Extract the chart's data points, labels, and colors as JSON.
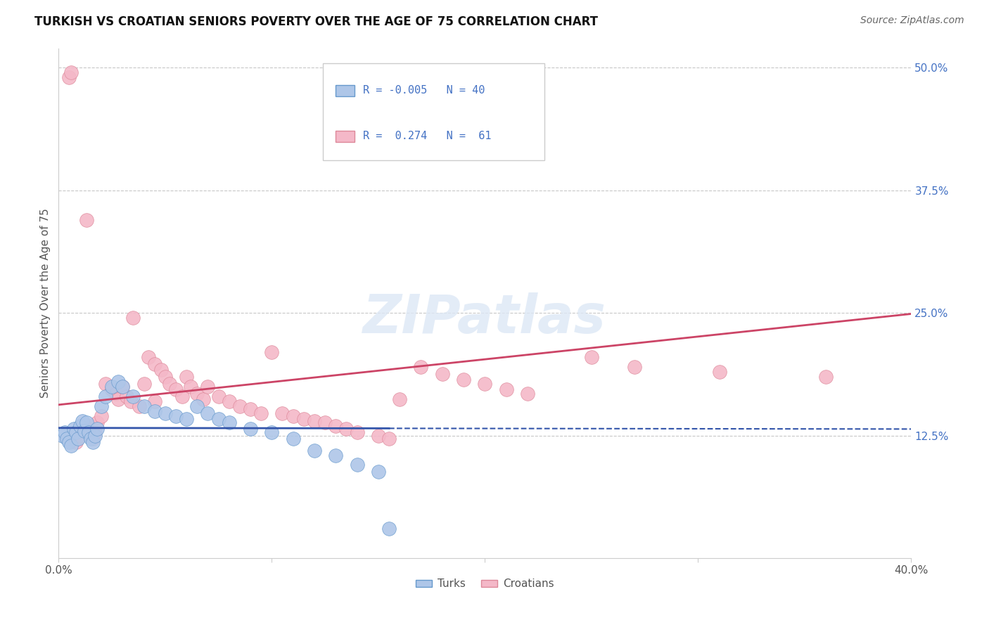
{
  "title": "TURKISH VS CROATIAN SENIORS POVERTY OVER THE AGE OF 75 CORRELATION CHART",
  "source": "Source: ZipAtlas.com",
  "ylabel": "Seniors Poverty Over the Age of 75",
  "xlim": [
    0.0,
    0.4
  ],
  "ylim": [
    0.0,
    0.52
  ],
  "ytick_positions": [
    0.125,
    0.25,
    0.375,
    0.5
  ],
  "ytick_labels": [
    "12.5%",
    "25.0%",
    "37.5%",
    "50.0%"
  ],
  "background_color": "#ffffff",
  "grid_color": "#c8c8c8",
  "turks_color": "#aec6e8",
  "turks_edge_color": "#6699cc",
  "croatians_color": "#f4b8c8",
  "croatians_edge_color": "#dd8899",
  "turks_line_color": "#3355aa",
  "croatians_line_color": "#cc4466",
  "R_turks": -0.005,
  "N_turks": 40,
  "R_croatians": 0.274,
  "N_croatians": 61,
  "turks_x": [
    0.002,
    0.003,
    0.004,
    0.005,
    0.006,
    0.007,
    0.008,
    0.009,
    0.01,
    0.011,
    0.012,
    0.013,
    0.014,
    0.015,
    0.016,
    0.017,
    0.018,
    0.02,
    0.022,
    0.025,
    0.028,
    0.03,
    0.035,
    0.04,
    0.045,
    0.05,
    0.055,
    0.06,
    0.065,
    0.07,
    0.075,
    0.08,
    0.09,
    0.1,
    0.11,
    0.12,
    0.13,
    0.14,
    0.15,
    0.155
  ],
  "turks_y": [
    0.125,
    0.128,
    0.122,
    0.118,
    0.115,
    0.132,
    0.128,
    0.122,
    0.135,
    0.14,
    0.13,
    0.138,
    0.128,
    0.122,
    0.118,
    0.125,
    0.132,
    0.155,
    0.165,
    0.175,
    0.18,
    0.175,
    0.165,
    0.155,
    0.15,
    0.148,
    0.145,
    0.142,
    0.155,
    0.148,
    0.142,
    0.138,
    0.132,
    0.128,
    0.122,
    0.11,
    0.105,
    0.095,
    0.088,
    0.03
  ],
  "croatians_x": [
    0.005,
    0.006,
    0.008,
    0.01,
    0.012,
    0.013,
    0.015,
    0.016,
    0.017,
    0.018,
    0.02,
    0.022,
    0.025,
    0.027,
    0.028,
    0.03,
    0.032,
    0.034,
    0.035,
    0.038,
    0.04,
    0.042,
    0.045,
    0.048,
    0.05,
    0.052,
    0.055,
    0.058,
    0.06,
    0.062,
    0.065,
    0.068,
    0.07,
    0.075,
    0.08,
    0.085,
    0.09,
    0.095,
    0.1,
    0.105,
    0.11,
    0.115,
    0.12,
    0.125,
    0.13,
    0.135,
    0.14,
    0.15,
    0.155,
    0.16,
    0.17,
    0.18,
    0.19,
    0.2,
    0.21,
    0.22,
    0.25,
    0.27,
    0.31,
    0.36,
    0.045
  ],
  "croatians_y": [
    0.49,
    0.495,
    0.118,
    0.125,
    0.13,
    0.345,
    0.135,
    0.122,
    0.128,
    0.138,
    0.145,
    0.178,
    0.172,
    0.168,
    0.162,
    0.175,
    0.165,
    0.16,
    0.245,
    0.155,
    0.178,
    0.205,
    0.198,
    0.192,
    0.185,
    0.178,
    0.172,
    0.165,
    0.185,
    0.175,
    0.168,
    0.162,
    0.175,
    0.165,
    0.16,
    0.155,
    0.152,
    0.148,
    0.21,
    0.148,
    0.145,
    0.142,
    0.14,
    0.138,
    0.135,
    0.132,
    0.128,
    0.125,
    0.122,
    0.162,
    0.195,
    0.188,
    0.182,
    0.178,
    0.172,
    0.168,
    0.205,
    0.195,
    0.19,
    0.185,
    0.16
  ]
}
